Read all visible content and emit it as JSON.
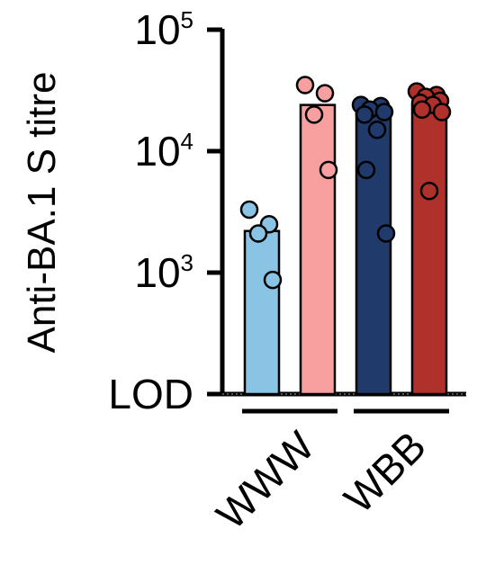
{
  "chart_data": {
    "type": "bar",
    "ylabel": "Anti-BA.1 S titre",
    "xlabel": "",
    "title": "",
    "yscale": "log",
    "ylim": [
      100,
      100000
    ],
    "y_ticks": [
      {
        "value": 100,
        "label": "LOD",
        "exp": ""
      },
      {
        "value": 1000,
        "label": "10",
        "exp": "3"
      },
      {
        "value": 10000,
        "label": "10",
        "exp": "4"
      },
      {
        "value": 100000,
        "label": "10",
        "exp": "5"
      }
    ],
    "groups": [
      {
        "label": "WWW",
        "bars": [
          0,
          1
        ]
      },
      {
        "label": "WBB",
        "bars": [
          2,
          3
        ]
      }
    ],
    "bars": [
      {
        "value": 2200,
        "color": "#8ac4e4",
        "points": [
          3300,
          2500,
          2100,
          870
        ]
      },
      {
        "value": 24000,
        "color": "#f7a09f",
        "points": [
          35000,
          30000,
          20000,
          7000
        ]
      },
      {
        "value": 20500,
        "color": "#1f3a6b",
        "points": [
          24000,
          23500,
          22000,
          21000,
          20000,
          15000,
          7000,
          2100
        ]
      },
      {
        "value": 24000,
        "color": "#b0312c",
        "points": [
          31000,
          29000,
          28000,
          26000,
          25000,
          24000,
          22000,
          21000,
          4700
        ]
      }
    ],
    "grid": false,
    "legend": "none"
  }
}
